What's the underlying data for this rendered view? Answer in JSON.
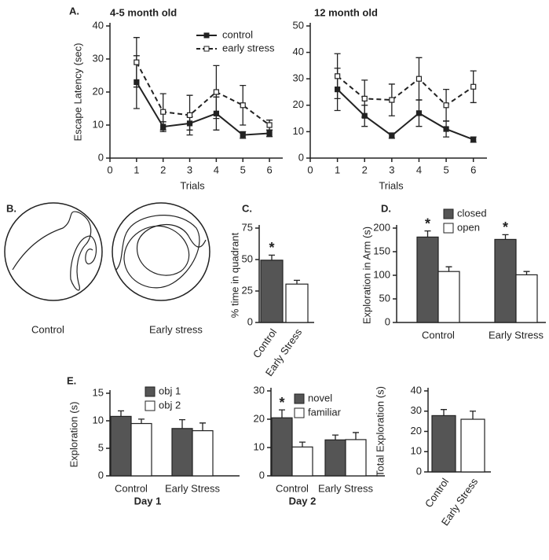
{
  "chart_data": [
    {
      "type": "line",
      "panel": "A.",
      "title": "4-5 month old",
      "xlabel": "Trials",
      "ylabel": "Escape Latency (sec)",
      "x": [
        1,
        2,
        3,
        4,
        5,
        6
      ],
      "xlim": [
        0,
        6.5
      ],
      "xticks": [
        0,
        1,
        2,
        3,
        4,
        5,
        6
      ],
      "ylim": [
        0,
        40
      ],
      "yticks": [
        0,
        10,
        20,
        30,
        40
      ],
      "series": [
        {
          "name": "control",
          "color": "#222222",
          "fill": "#222222",
          "line_style": "solid",
          "values": [
            23,
            9.5,
            10.5,
            13.5,
            7,
            7.5
          ],
          "errors": [
            8,
            1.5,
            2,
            5,
            1,
            1
          ]
        },
        {
          "name": "early stress",
          "color": "#222222",
          "fill": "#ffffff",
          "line_style": "dashed",
          "values": [
            29,
            14,
            13,
            20,
            16,
            10
          ],
          "errors": [
            7.5,
            5.5,
            6,
            8,
            6,
            1.5
          ]
        }
      ]
    },
    {
      "type": "line",
      "title": "12 month old",
      "xlabel": "Trials",
      "x": [
        1,
        2,
        3,
        4,
        5,
        6
      ],
      "xlim": [
        0,
        6.5
      ],
      "xticks": [
        0,
        1,
        2,
        3,
        4,
        5,
        6
      ],
      "ylim": [
        0,
        50
      ],
      "yticks": [
        0,
        10,
        20,
        30,
        40,
        50
      ],
      "series": [
        {
          "color": "#222222",
          "fill": "#222222",
          "line_style": "solid",
          "values": [
            26,
            16,
            8.5,
            17,
            11,
            7
          ],
          "errors": [
            8,
            4,
            1,
            5,
            3,
            1
          ]
        },
        {
          "color": "#222222",
          "fill": "#ffffff",
          "line_style": "dashed",
          "values": [
            31,
            22.5,
            22,
            30,
            20,
            27
          ],
          "errors": [
            8.5,
            7,
            6,
            8,
            6,
            6
          ]
        }
      ]
    },
    {
      "type": "bar",
      "panel": "C.",
      "ylabel": "% time in quadrant",
      "categories": [
        "Control",
        "Early Stress"
      ],
      "values": [
        49.5,
        30.5
      ],
      "errors": [
        4,
        3
      ],
      "colors": [
        "#555555",
        "#ffffff"
      ],
      "ylim": [
        0,
        75
      ],
      "yticks": [
        0,
        25,
        50,
        75
      ],
      "annotations": [
        "*"
      ]
    },
    {
      "type": "bar",
      "panel": "D.",
      "ylabel": "Exploration in Arm (s)",
      "categories": [
        "Control",
        "Early Stress"
      ],
      "series": [
        {
          "name": "closed",
          "color": "#555555",
          "values": [
            181,
            176
          ],
          "errors": [
            13,
            10
          ]
        },
        {
          "name": "open",
          "color": "#ffffff",
          "values": [
            108,
            101
          ],
          "errors": [
            10,
            7
          ]
        }
      ],
      "ylim": [
        0,
        200
      ],
      "yticks": [
        0,
        50,
        100,
        150,
        200
      ],
      "annotations": [
        "*",
        "*"
      ]
    },
    {
      "type": "bar",
      "panel": "E.",
      "ylabel": "Exploration (s)",
      "xlabel": "Day 1",
      "categories": [
        "Control",
        "Early Stress"
      ],
      "series": [
        {
          "name": "obj 1",
          "color": "#555555",
          "values": [
            10.8,
            8.6
          ],
          "errors": [
            1,
            1.6
          ]
        },
        {
          "name": "obj 2",
          "color": "#ffffff",
          "values": [
            9.5,
            8.2
          ],
          "errors": [
            0.8,
            1.4
          ]
        }
      ],
      "ylim": [
        0,
        15
      ],
      "yticks": [
        0,
        5,
        10,
        15
      ]
    },
    {
      "type": "bar",
      "xlabel": "Day 2",
      "categories": [
        "Control",
        "Early Stress"
      ],
      "series": [
        {
          "name": "novel",
          "color": "#555555",
          "values": [
            20.5,
            12.7
          ],
          "errors": [
            2.8,
            1.7
          ]
        },
        {
          "name": "familiar",
          "color": "#ffffff",
          "values": [
            10.2,
            12.8
          ],
          "errors": [
            1.7,
            2.5
          ]
        }
      ],
      "ylim": [
        0,
        30
      ],
      "yticks": [
        0,
        10,
        20,
        30
      ],
      "annotations": [
        "*"
      ]
    },
    {
      "type": "bar",
      "ylabel": "Total Exploration (s)",
      "categories": [
        "Control",
        "Early Stress"
      ],
      "values": [
        27.8,
        26
      ],
      "errors": [
        3,
        4
      ],
      "colors": [
        "#555555",
        "#ffffff"
      ],
      "ylim": [
        0,
        40
      ],
      "yticks": [
        0,
        10,
        20,
        30,
        40
      ]
    }
  ],
  "trajectories": {
    "panel": "B.",
    "labels": [
      "Control",
      "Early stress"
    ]
  }
}
